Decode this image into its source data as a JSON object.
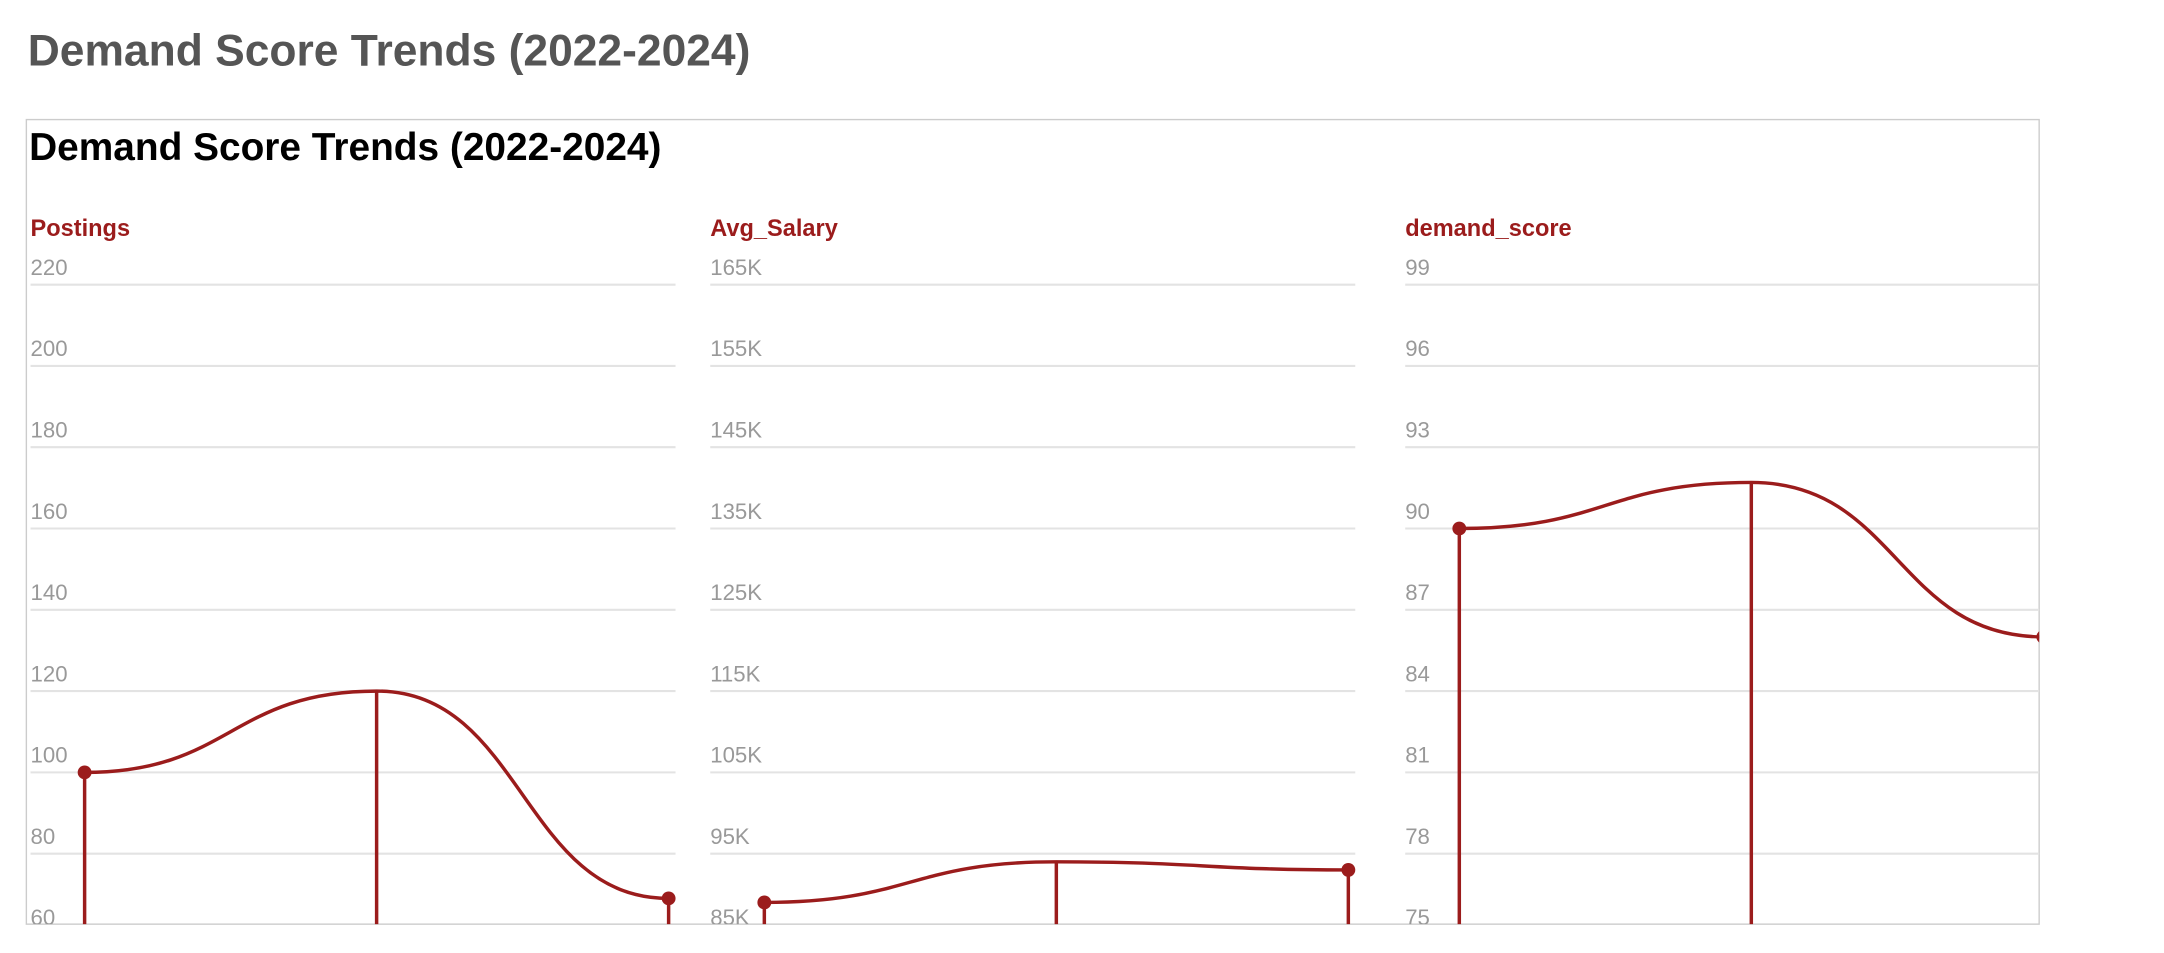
{
  "page_title": "Demand Score Trends (2022-2024)",
  "chart_data": [
    {
      "type": "line",
      "title": "Demand Score Trends (2022-2024)",
      "subtitle": "Postings",
      "color": "#9b1c1c",
      "categories": [
        null,
        null,
        null
      ],
      "values": [
        100,
        120,
        69
      ],
      "ylim": [
        60,
        220
      ],
      "yticks": [
        60,
        80,
        100,
        120,
        140,
        160,
        180,
        200,
        220
      ],
      "grid": true
    },
    {
      "type": "line",
      "subtitle": "Avg_Salary",
      "color": "#9b1c1c",
      "categories": [
        null,
        null,
        null
      ],
      "values": [
        89000,
        94000,
        93000
      ],
      "ylim": [
        85000,
        165000
      ],
      "yticks": [
        {
          "value": 85000,
          "label": "85K"
        },
        {
          "value": 95000,
          "label": "95K"
        },
        {
          "value": 105000,
          "label": "105K"
        },
        {
          "value": 115000,
          "label": "115K"
        },
        {
          "value": 125000,
          "label": "125K"
        },
        {
          "value": 135000,
          "label": "135K"
        },
        {
          "value": 145000,
          "label": "145K"
        },
        {
          "value": 155000,
          "label": "155K"
        },
        {
          "value": 165000,
          "label": "165K"
        }
      ],
      "grid": true
    },
    {
      "type": "line",
      "subtitle": "demand_score",
      "color": "#9b1c1c",
      "categories": [
        null,
        null,
        null
      ],
      "values": [
        90,
        91.7,
        86
      ],
      "ylim": [
        75,
        99
      ],
      "yticks": [
        75,
        78,
        81,
        84,
        87,
        90,
        93,
        96,
        99
      ],
      "grid": true
    }
  ]
}
